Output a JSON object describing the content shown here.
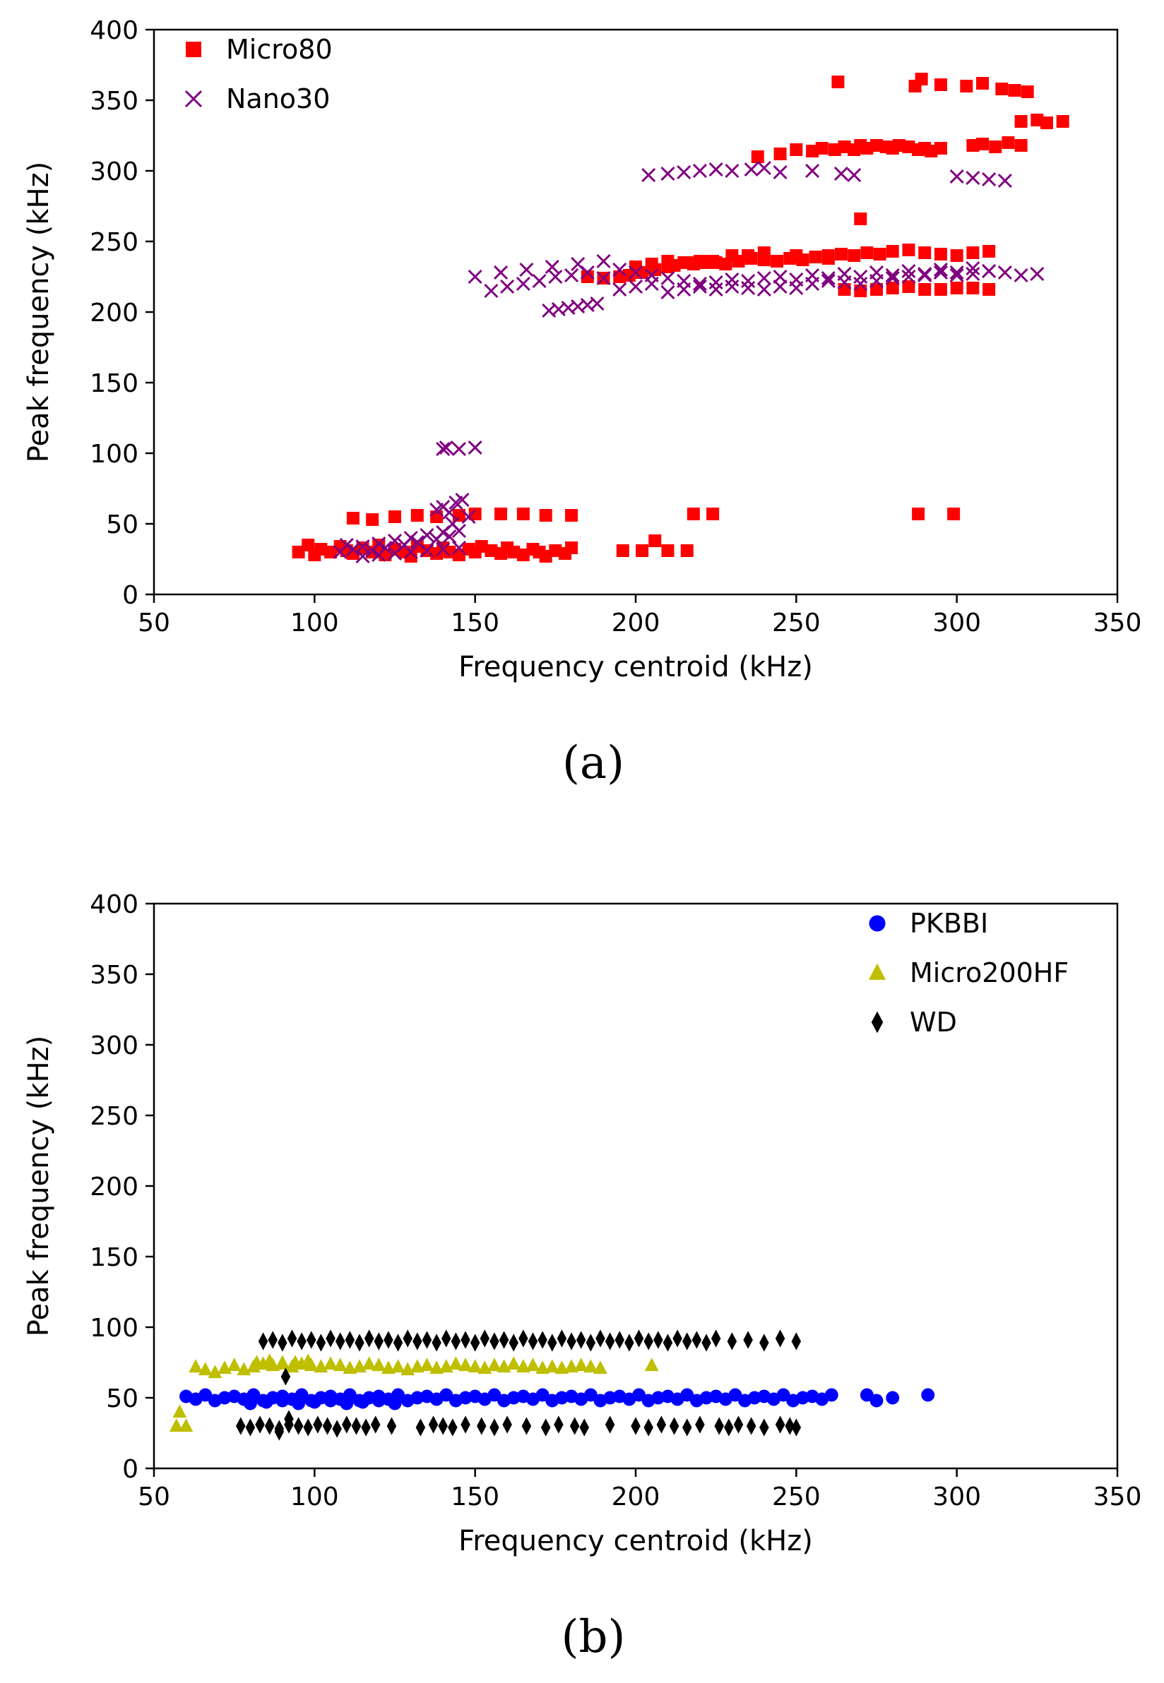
{
  "chart_data": [
    {
      "type": "scatter",
      "panel_label": "(a)",
      "xlabel": "Frequency centroid (kHz)",
      "ylabel": "Peak frequency (kHz)",
      "xlim": [
        50,
        350
      ],
      "ylim": [
        0,
        400
      ],
      "xticks": [
        50,
        100,
        150,
        200,
        250,
        300,
        350
      ],
      "yticks": [
        0,
        50,
        100,
        150,
        200,
        250,
        300,
        350,
        400
      ],
      "legend_position": "top-left",
      "series": [
        {
          "name": "Micro80",
          "color": "#ff0000",
          "marker": "square",
          "x": [
            95,
            98,
            100,
            102,
            105,
            108,
            110,
            112,
            115,
            118,
            120,
            122,
            125,
            128,
            130,
            132,
            135,
            138,
            140,
            142,
            145,
            148,
            150,
            152,
            155,
            158,
            160,
            162,
            165,
            168,
            170,
            172,
            175,
            178,
            180,
            112,
            118,
            125,
            132,
            138,
            145,
            150,
            158,
            165,
            172,
            180,
            196,
            202,
            206,
            210,
            216,
            218,
            224,
            288,
            299,
            200,
            205,
            210,
            215,
            220,
            225,
            230,
            235,
            240,
            250,
            260,
            265,
            270,
            275,
            280,
            285,
            290,
            295,
            300,
            305,
            310,
            185,
            190,
            195,
            198,
            202,
            206,
            210,
            212,
            216,
            218,
            220,
            222,
            224,
            228,
            232,
            236,
            240,
            244,
            248,
            252,
            256,
            260,
            264,
            268,
            272,
            276,
            280,
            285,
            290,
            295,
            300,
            305,
            310,
            238,
            245,
            250,
            255,
            258,
            262,
            265,
            268,
            270,
            272,
            275,
            278,
            280,
            282,
            285,
            288,
            290,
            292,
            295,
            305,
            308,
            312,
            316,
            320,
            325,
            328,
            333,
            320,
            263,
            287,
            289,
            295,
            303,
            308,
            314,
            318,
            322,
            270
          ],
          "y": [
            30,
            35,
            28,
            32,
            30,
            34,
            31,
            29,
            33,
            30,
            35,
            28,
            32,
            30,
            27,
            34,
            31,
            29,
            33,
            30,
            28,
            32,
            30,
            34,
            31,
            29,
            33,
            30,
            28,
            32,
            30,
            27,
            31,
            29,
            33,
            54,
            53,
            55,
            56,
            55,
            56,
            57,
            57,
            57,
            56,
            56,
            31,
            31,
            38,
            31,
            31,
            57,
            57,
            57,
            57,
            232,
            234,
            236,
            235,
            236,
            235,
            240,
            240,
            242,
            240,
            238,
            216,
            215,
            216,
            217,
            218,
            216,
            216,
            217,
            217,
            216,
            225,
            224,
            225,
            226,
            228,
            230,
            232,
            233,
            235,
            234,
            236,
            235,
            236,
            234,
            236,
            238,
            237,
            236,
            238,
            237,
            239,
            240,
            241,
            240,
            242,
            241,
            243,
            244,
            242,
            241,
            240,
            242,
            243,
            310,
            312,
            315,
            314,
            316,
            315,
            317,
            315,
            318,
            316,
            318,
            317,
            316,
            318,
            317,
            315,
            316,
            314,
            316,
            318,
            319,
            317,
            320,
            335,
            336,
            334,
            335,
            318,
            363,
            360,
            365,
            361,
            360,
            362,
            358,
            357,
            356,
            266
          ]
        },
        {
          "name": "Nano30",
          "color": "#800080",
          "marker": "x",
          "x": [
            108,
            110,
            112,
            115,
            118,
            120,
            122,
            125,
            128,
            130,
            132,
            135,
            138,
            140,
            142,
            145,
            115,
            120,
            125,
            130,
            135,
            140,
            145,
            138,
            140,
            142,
            144,
            146,
            148,
            143,
            140,
            141,
            145,
            150,
            155,
            160,
            165,
            170,
            175,
            180,
            185,
            190,
            195,
            200,
            205,
            210,
            215,
            220,
            225,
            230,
            235,
            240,
            245,
            250,
            255,
            260,
            265,
            270,
            275,
            280,
            285,
            290,
            295,
            300,
            305,
            310,
            315,
            320,
            325,
            173,
            176,
            179,
            182,
            185,
            188,
            150,
            158,
            166,
            174,
            182,
            190,
            195,
            200,
            205,
            210,
            215,
            220,
            225,
            230,
            235,
            240,
            245,
            250,
            255,
            260,
            265,
            270,
            275,
            280,
            285,
            290,
            295,
            300,
            305,
            310,
            204,
            210,
            215,
            220,
            225,
            230,
            236,
            240,
            245,
            255,
            264,
            268,
            300,
            305,
            310,
            315
          ],
          "y": [
            30,
            35,
            32,
            34,
            31,
            36,
            33,
            38,
            35,
            40,
            37,
            42,
            39,
            44,
            41,
            45,
            27,
            28,
            29,
            30,
            31,
            32,
            33,
            60,
            62,
            58,
            65,
            67,
            55,
            50,
            103,
            104,
            103,
            104,
            215,
            218,
            220,
            222,
            225,
            226,
            228,
            224,
            216,
            218,
            220,
            214,
            216,
            218,
            216,
            218,
            217,
            216,
            218,
            217,
            220,
            222,
            221,
            220,
            222,
            224,
            225,
            226,
            228,
            226,
            227,
            229,
            228,
            226,
            227,
            201,
            202,
            203,
            204,
            205,
            206,
            225,
            228,
            230,
            232,
            234,
            236,
            230,
            228,
            226,
            224,
            222,
            220,
            221,
            223,
            222,
            224,
            225,
            223,
            226,
            224,
            227,
            225,
            228,
            226,
            229,
            227,
            230,
            228,
            231,
            229,
            297,
            298,
            299,
            300,
            301,
            300,
            301,
            302,
            299,
            300,
            298,
            297,
            296,
            295,
            294,
            293
          ]
        }
      ]
    },
    {
      "type": "scatter",
      "panel_label": "(b)",
      "xlabel": "Frequency centroid (kHz)",
      "ylabel": "Peak frequency (kHz)",
      "xlim": [
        50,
        350
      ],
      "ylim": [
        0,
        400
      ],
      "xticks": [
        50,
        100,
        150,
        200,
        250,
        300,
        350
      ],
      "yticks": [
        0,
        50,
        100,
        150,
        200,
        250,
        300,
        350,
        400
      ],
      "legend_position": "top-right",
      "series": [
        {
          "name": "PKBBI",
          "color": "#0000ff",
          "marker": "circle",
          "x": [
            60,
            63,
            66,
            69,
            72,
            75,
            78,
            81,
            84,
            87,
            90,
            93,
            96,
            99,
            102,
            105,
            108,
            111,
            114,
            117,
            120,
            123,
            126,
            129,
            132,
            135,
            138,
            141,
            144,
            147,
            150,
            153,
            156,
            159,
            162,
            165,
            168,
            171,
            174,
            177,
            180,
            183,
            186,
            189,
            192,
            195,
            198,
            201,
            204,
            207,
            210,
            213,
            216,
            219,
            222,
            225,
            228,
            231,
            234,
            237,
            240,
            243,
            246,
            249,
            252,
            255,
            258,
            261,
            272,
            275,
            280,
            291,
            80,
            85,
            90,
            95,
            100,
            105,
            110,
            115,
            120,
            125
          ],
          "y": [
            51,
            49,
            52,
            48,
            50,
            51,
            49,
            52,
            48,
            50,
            51,
            49,
            52,
            48,
            50,
            51,
            49,
            52,
            48,
            50,
            51,
            49,
            52,
            48,
            50,
            51,
            49,
            52,
            48,
            50,
            51,
            49,
            52,
            48,
            50,
            51,
            49,
            52,
            48,
            50,
            51,
            49,
            52,
            48,
            50,
            51,
            49,
            52,
            48,
            50,
            51,
            49,
            52,
            48,
            50,
            51,
            49,
            52,
            48,
            50,
            51,
            49,
            52,
            48,
            50,
            51,
            49,
            52,
            52,
            48,
            50,
            52,
            46,
            47,
            48,
            46,
            47,
            48,
            46,
            47,
            48,
            46
          ]
        },
        {
          "name": "Micro200HF",
          "color": "#bfbf00",
          "marker": "triangle",
          "x": [
            57,
            58,
            60,
            63,
            66,
            69,
            72,
            75,
            78,
            81,
            84,
            87,
            90,
            93,
            96,
            99,
            102,
            105,
            108,
            111,
            114,
            117,
            120,
            123,
            126,
            129,
            132,
            135,
            138,
            141,
            144,
            147,
            150,
            153,
            156,
            159,
            162,
            165,
            168,
            171,
            174,
            177,
            180,
            183,
            186,
            189,
            205,
            82,
            86,
            90,
            94,
            98
          ],
          "y": [
            30,
            40,
            30,
            72,
            70,
            68,
            71,
            73,
            70,
            72,
            74,
            73,
            75,
            72,
            74,
            73,
            72,
            74,
            73,
            71,
            72,
            74,
            73,
            71,
            72,
            70,
            72,
            73,
            71,
            72,
            74,
            73,
            72,
            71,
            73,
            72,
            74,
            72,
            73,
            71,
            72,
            71,
            72,
            73,
            72,
            71,
            73,
            75,
            76,
            74,
            75,
            76
          ]
        },
        {
          "name": "WD",
          "color": "#000000",
          "marker": "diamond",
          "x": [
            84,
            87,
            90,
            93,
            96,
            99,
            102,
            105,
            108,
            111,
            114,
            117,
            120,
            123,
            126,
            129,
            132,
            135,
            138,
            141,
            144,
            147,
            150,
            153,
            156,
            159,
            162,
            165,
            168,
            171,
            174,
            177,
            180,
            183,
            186,
            189,
            192,
            195,
            198,
            201,
            204,
            207,
            210,
            213,
            216,
            219,
            222,
            225,
            230,
            235,
            240,
            245,
            250,
            77,
            80,
            83,
            86,
            89,
            92,
            95,
            98,
            101,
            104,
            107,
            110,
            113,
            116,
            119,
            124,
            133,
            137,
            140,
            143,
            147,
            152,
            156,
            160,
            166,
            172,
            176,
            181,
            184,
            192,
            200,
            204,
            208,
            212,
            216,
            220,
            226,
            229,
            232,
            236,
            240,
            245,
            248,
            250,
            91,
            89,
            92
          ],
          "y": [
            90,
            91,
            89,
            92,
            90,
            91,
            89,
            92,
            90,
            91,
            89,
            92,
            90,
            91,
            89,
            92,
            90,
            91,
            89,
            92,
            90,
            91,
            89,
            92,
            90,
            91,
            89,
            92,
            90,
            91,
            89,
            92,
            90,
            91,
            89,
            92,
            90,
            91,
            89,
            92,
            90,
            91,
            89,
            92,
            90,
            91,
            89,
            92,
            90,
            91,
            89,
            92,
            90,
            30,
            29,
            31,
            30,
            28,
            31,
            30,
            29,
            31,
            30,
            28,
            31,
            30,
            29,
            31,
            30,
            29,
            31,
            30,
            29,
            31,
            30,
            29,
            31,
            30,
            29,
            31,
            30,
            29,
            31,
            30,
            29,
            31,
            30,
            29,
            31,
            30,
            29,
            31,
            30,
            29,
            31,
            30,
            29,
            65,
            26,
            35
          ]
        }
      ]
    }
  ]
}
